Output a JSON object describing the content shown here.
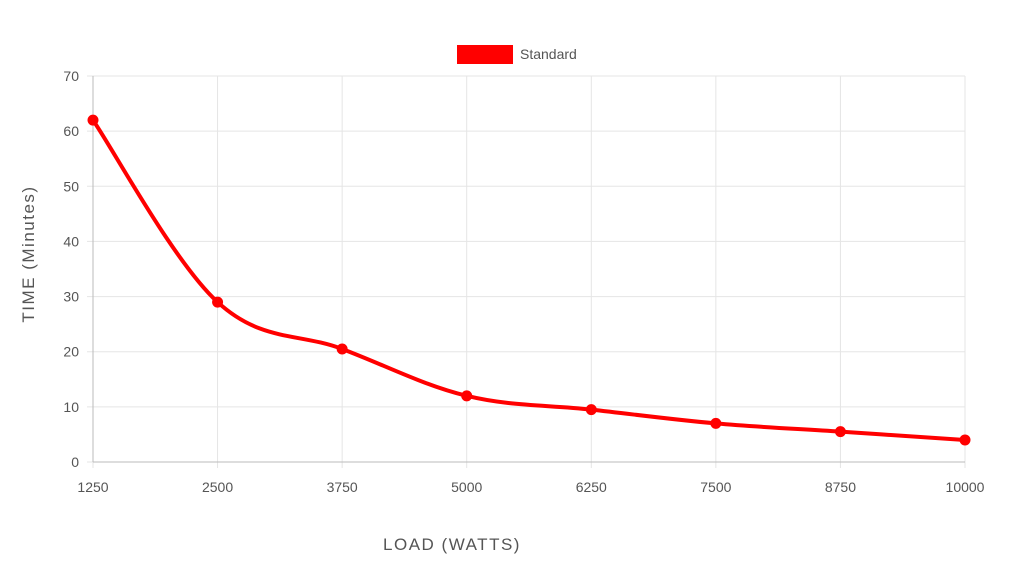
{
  "chart_data": {
    "type": "line",
    "categories": [
      "1250",
      "2500",
      "3750",
      "5000",
      "6250",
      "7500",
      "8750",
      "10000"
    ],
    "series": [
      {
        "name": "Standard",
        "values": [
          62,
          29,
          20.5,
          12,
          9.5,
          7,
          5.5,
          4
        ],
        "color": "#ff0000"
      }
    ],
    "xlabel": "LOAD (WATTS)",
    "ylabel": "TIME (Minutes)",
    "ylim": [
      0,
      70
    ],
    "yticks": [
      0,
      10,
      20,
      30,
      40,
      50,
      60,
      70
    ],
    "grid": true,
    "legend": "top-center",
    "smooth": true
  }
}
